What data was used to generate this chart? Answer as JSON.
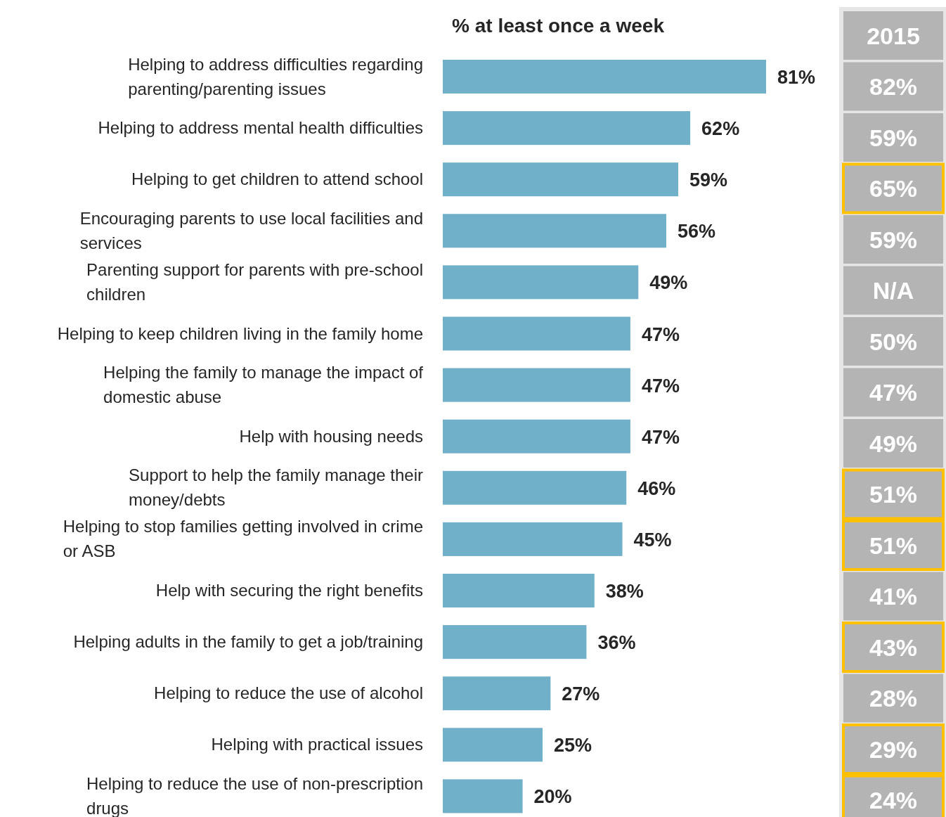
{
  "chart_data": [
    {
      "type": "bar",
      "orientation": "horizontal",
      "title": "% at least once a week",
      "color": "#70b0c8",
      "categories": [
        "Helping to address difficulties regarding parenting/parenting issues",
        "Helping to address mental health difficulties",
        "Helping to get children to attend school",
        "Encouraging parents to use local facilities and services",
        "Parenting support for parents with pre-school children",
        "Helping to keep children living in the family home",
        "Helping the family to manage the impact of domestic abuse",
        "Help with housing needs",
        "Support to help the family manage their money/debts",
        "Helping to stop families getting involved in crime or ASB",
        "Help with securing the right benefits",
        "Helping adults in the family to get a job/training",
        "Helping to reduce the use of alcohol",
        "Helping with practical issues",
        "Helping to reduce the use of non-prescription drugs"
      ],
      "values": [
        81,
        62,
        59,
        56,
        49,
        47,
        47,
        47,
        46,
        45,
        38,
        36,
        27,
        25,
        20
      ],
      "value_labels": [
        "81%",
        "62%",
        "59%",
        "56%",
        "49%",
        "47%",
        "47%",
        "47%",
        "46%",
        "45%",
        "38%",
        "36%",
        "27%",
        "25%",
        "20%"
      ]
    },
    {
      "type": "other",
      "title": "2015",
      "categories": [
        null,
        null,
        null,
        null,
        null,
        null,
        null,
        null,
        null,
        null,
        null,
        null,
        null,
        null,
        null
      ],
      "value_labels": [
        "82%",
        "59%",
        "65%",
        "59%",
        "N/A",
        "50%",
        "47%",
        "49%",
        "51%",
        "51%",
        "41%",
        "43%",
        "28%",
        "29%",
        "24%"
      ],
      "colors": [
        "#d9d9d9",
        "#d9d9d9",
        "#ffc000",
        "#d9d9d9",
        "#d9d9d9",
        "#d9d9d9",
        "#d9d9d9",
        "#d9d9d9",
        "#ffc000",
        "#ffc000",
        "#d9d9d9",
        "#ffc000",
        "#d9d9d9",
        "#ffc000",
        "#ffc000"
      ]
    }
  ]
}
